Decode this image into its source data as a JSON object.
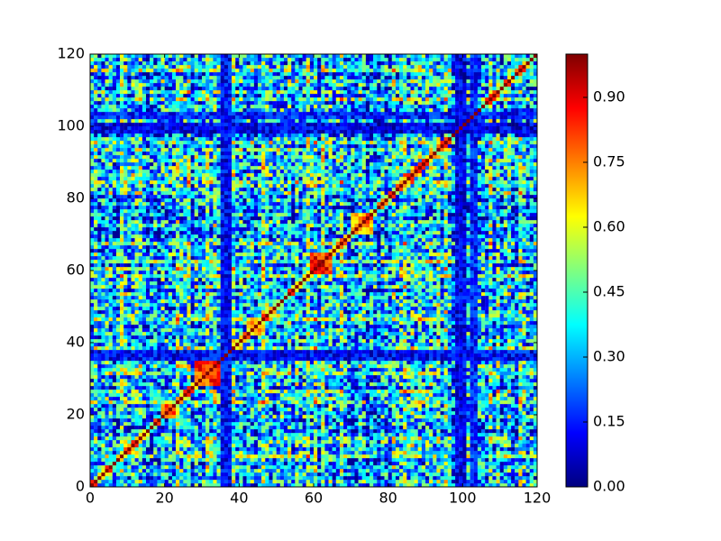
{
  "chart_data": {
    "type": "heatmap",
    "title": "",
    "xlabel": "",
    "ylabel": "",
    "grid": false,
    "n": 120,
    "xlim": [
      0,
      120
    ],
    "ylim": [
      0,
      120
    ],
    "xticks": [
      0,
      20,
      40,
      60,
      80,
      100,
      120
    ],
    "yticks": [
      0,
      20,
      40,
      60,
      80,
      100,
      120
    ],
    "xtick_labels": [
      "0",
      "20",
      "40",
      "60",
      "80",
      "100",
      "120"
    ],
    "ytick_labels": [
      "0",
      "20",
      "40",
      "60",
      "80",
      "100",
      "120"
    ],
    "colormap": "jet",
    "colorbar": {
      "range": [
        0,
        1
      ],
      "placement": "right",
      "ticks": [
        0.0,
        0.15,
        0.3,
        0.45,
        0.6,
        0.75,
        0.9
      ],
      "tick_labels": [
        "0.00",
        "0.15",
        "0.30",
        "0.45",
        "0.60",
        "0.75",
        "0.90"
      ]
    },
    "diagonal_value": 1.0,
    "low_bands": [
      {
        "index_range": [
          35,
          37
        ],
        "value": 0.12
      },
      {
        "index_range": [
          98,
          100
        ],
        "value": 0.1
      },
      {
        "index_range": [
          102,
          103
        ],
        "value": 0.15
      }
    ],
    "high_blocks": [
      {
        "index_range": [
          28,
          34
        ],
        "value": 0.8
      },
      {
        "index_range": [
          59,
          64
        ],
        "value": 0.85
      },
      {
        "index_range": [
          70,
          75
        ],
        "value": 0.72
      },
      {
        "index_range": [
          19,
          22
        ],
        "value": 0.75
      },
      {
        "index_range": [
          42,
          46
        ],
        "value": 0.7
      }
    ]
  }
}
